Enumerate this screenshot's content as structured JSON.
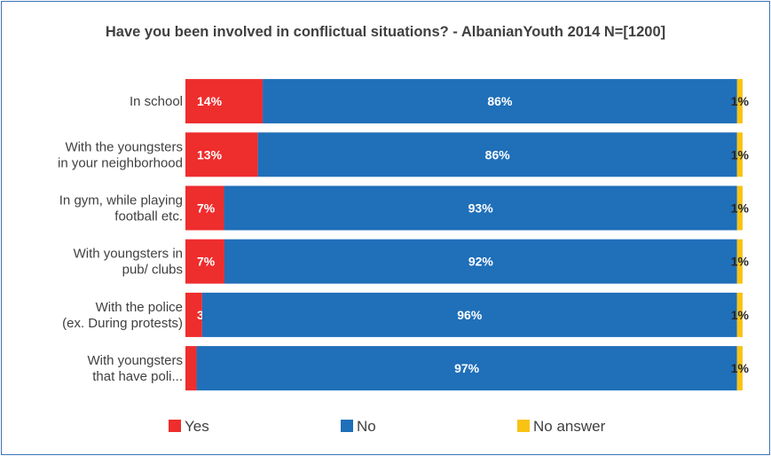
{
  "chart_data": {
    "type": "bar",
    "orientation": "horizontal",
    "stacked": true,
    "title": "Have you been involved in conflictual situations? - AlbanianYouth 2014 N=[1200]",
    "categories": [
      [
        "In school"
      ],
      [
        "With the youngsters",
        "in your neighborhood"
      ],
      [
        "In gym, while playing",
        "football etc."
      ],
      [
        "With youngsters in",
        "pub/ clubs"
      ],
      [
        "With the police",
        "(ex. During protests)"
      ],
      [
        "With youngsters",
        "that have poli..."
      ]
    ],
    "series": [
      {
        "name": "Yes",
        "color": "#ee2d2d",
        "label_color": "#ffffff",
        "values": [
          14,
          13,
          7,
          7,
          3,
          2
        ]
      },
      {
        "name": "No",
        "color": "#1f6fb9",
        "label_color": "#ffffff",
        "values": [
          86,
          86,
          93,
          92,
          96,
          97
        ]
      },
      {
        "name": "No answer",
        "color": "#f9c313",
        "label_color": "#262626",
        "values": [
          1,
          1,
          1,
          1,
          1,
          1
        ]
      }
    ],
    "value_suffix": "%",
    "legend_position": "bottom",
    "grid": false
  }
}
